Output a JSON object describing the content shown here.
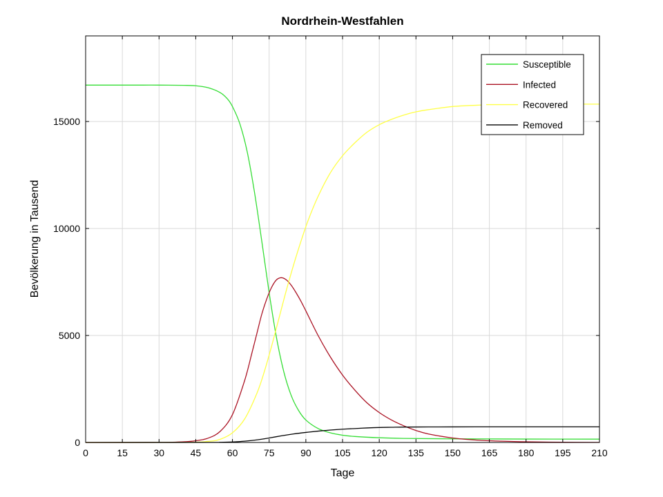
{
  "chart_data": {
    "type": "line",
    "title": "Nordrhein-Westfahlen",
    "xlabel": "Tage",
    "ylabel": "Bevölkerung in Tausend",
    "xlim": [
      0,
      210
    ],
    "ylim": [
      0,
      19000
    ],
    "xticks": [
      0,
      15,
      30,
      45,
      60,
      75,
      90,
      105,
      120,
      135,
      150,
      165,
      180,
      195,
      210
    ],
    "yticks": [
      0,
      5000,
      10000,
      15000
    ],
    "grid": true,
    "legend_position": "top-right",
    "series": [
      {
        "name": "Susceptible",
        "color": "#33dd33",
        "x": [
          0,
          10,
          20,
          30,
          40,
          45,
          50,
          55,
          58,
          60,
          63,
          66,
          69,
          72,
          75,
          78,
          81,
          84,
          87,
          90,
          95,
          100,
          105,
          110,
          120,
          130,
          150,
          180,
          210
        ],
        "y": [
          16700,
          16700,
          16700,
          16700,
          16690,
          16670,
          16580,
          16350,
          16050,
          15700,
          14900,
          13600,
          11700,
          9400,
          7000,
          4900,
          3300,
          2200,
          1500,
          1050,
          650,
          450,
          340,
          280,
          220,
          190,
          170,
          160,
          155
        ]
      },
      {
        "name": "Infected",
        "color": "#aa1122",
        "x": [
          0,
          30,
          40,
          45,
          50,
          55,
          60,
          65,
          68,
          70,
          72,
          74,
          76,
          78,
          80,
          82,
          84,
          86,
          88,
          90,
          95,
          100,
          105,
          110,
          115,
          120,
          125,
          130,
          135,
          140,
          150,
          160,
          170,
          180,
          195,
          210
        ],
        "y": [
          0,
          5,
          30,
          80,
          200,
          520,
          1300,
          2900,
          4200,
          5100,
          6000,
          6700,
          7250,
          7600,
          7700,
          7600,
          7350,
          7000,
          6600,
          6150,
          5000,
          4000,
          3150,
          2450,
          1850,
          1400,
          1050,
          780,
          560,
          400,
          210,
          110,
          60,
          30,
          12,
          5
        ]
      },
      {
        "name": "Recovered",
        "color": "#ffff44",
        "x": [
          0,
          40,
          50,
          55,
          60,
          65,
          70,
          73,
          76,
          79,
          82,
          85,
          88,
          91,
          95,
          100,
          105,
          110,
          115,
          120,
          125,
          130,
          135,
          140,
          150,
          160,
          170,
          180,
          195,
          210
        ],
        "y": [
          0,
          5,
          50,
          150,
          450,
          1100,
          2300,
          3300,
          4500,
          5800,
          7100,
          8300,
          9400,
          10400,
          11500,
          12600,
          13400,
          14000,
          14500,
          14850,
          15100,
          15300,
          15450,
          15550,
          15700,
          15760,
          15790,
          15800,
          15810,
          15810
        ]
      },
      {
        "name": "Removed",
        "color": "#000000",
        "x": [
          0,
          50,
          55,
          60,
          65,
          70,
          75,
          80,
          85,
          90,
          95,
          100,
          105,
          110,
          115,
          120,
          125,
          130,
          140,
          150,
          165,
          180,
          195,
          210
        ],
        "y": [
          0,
          3,
          8,
          25,
          60,
          120,
          210,
          310,
          400,
          470,
          530,
          580,
          620,
          650,
          680,
          700,
          710,
          720,
          725,
          728,
          730,
          730,
          730,
          730
        ]
      }
    ]
  }
}
